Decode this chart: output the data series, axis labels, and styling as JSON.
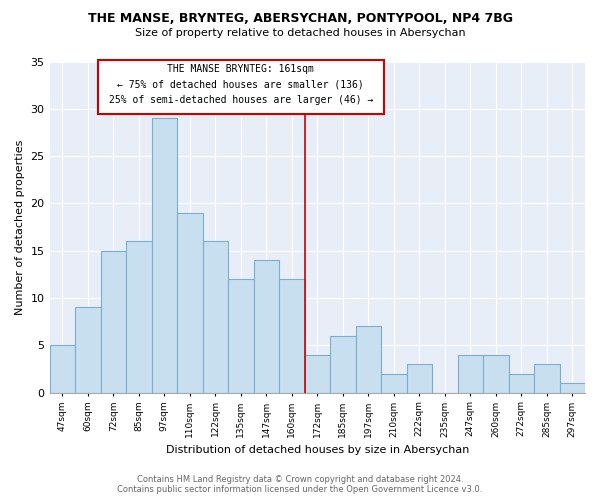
{
  "title": "THE MANSE, BRYNTEG, ABERSYCHAN, PONTYPOOL, NP4 7BG",
  "subtitle": "Size of property relative to detached houses in Abersychan",
  "xlabel": "Distribution of detached houses by size in Abersychan",
  "ylabel": "Number of detached properties",
  "annotation_title": "THE MANSE BRYNTEG: 161sqm",
  "annotation_line1": "← 75% of detached houses are smaller (136)",
  "annotation_line2": "25% of semi-detached houses are larger (46) →",
  "categories": [
    "47sqm",
    "60sqm",
    "72sqm",
    "85sqm",
    "97sqm",
    "110sqm",
    "122sqm",
    "135sqm",
    "147sqm",
    "160sqm",
    "172sqm",
    "185sqm",
    "197sqm",
    "210sqm",
    "222sqm",
    "235sqm",
    "247sqm",
    "260sqm",
    "272sqm",
    "285sqm",
    "297sqm"
  ],
  "values": [
    5,
    9,
    15,
    16,
    29,
    19,
    16,
    12,
    14,
    12,
    4,
    6,
    7,
    2,
    3,
    0,
    4,
    4,
    2,
    3,
    1
  ],
  "bar_color": "#c8dff0",
  "bar_edgecolor": "#7aaecc",
  "vline_color": "#cc0000",
  "vline_index": 9.5,
  "annotation_box_edgecolor": "#cc0000",
  "annotation_box_facecolor": "#ffffff",
  "footer_line1": "Contains HM Land Registry data © Crown copyright and database right 2024.",
  "footer_line2": "Contains public sector information licensed under the Open Government Licence v3.0.",
  "ylim": [
    0,
    35
  ],
  "yticks": [
    0,
    5,
    10,
    15,
    20,
    25,
    30,
    35
  ],
  "background_color": "#e8eef8",
  "fig_background": "#ffffff",
  "grid_color": "#ffffff"
}
